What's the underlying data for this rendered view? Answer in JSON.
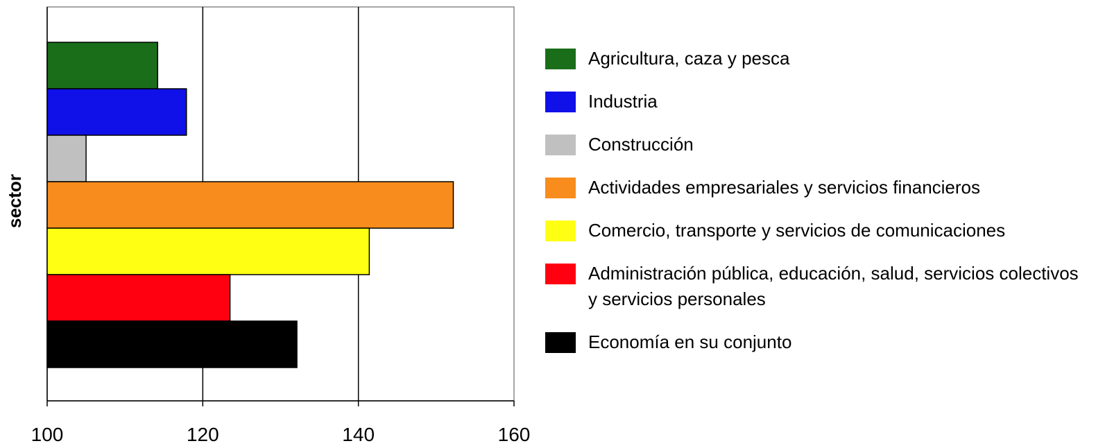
{
  "chart_data": {
    "type": "bar",
    "orientation": "horizontal",
    "ylabel": "sector",
    "xlim": [
      100,
      160
    ],
    "xticks": [
      100,
      120,
      140,
      160
    ],
    "grid": true,
    "series": [
      {
        "name": "Agricultura, caza y pesca",
        "color": "#1a6e1a",
        "values": [
          114.2
        ]
      },
      {
        "name": "Industria",
        "color": "#1010e8",
        "values": [
          117.9
        ]
      },
      {
        "name": "Construcción",
        "color": "#c0c0c0",
        "values": [
          105
        ]
      },
      {
        "name": "Actividades empresariales y servicios financieros",
        "color": "#f88c1c",
        "values": [
          152.2
        ]
      },
      {
        "name": "Comercio, transporte y servicios de comunicaciones",
        "color": "#ffff14",
        "values": [
          141.4
        ]
      },
      {
        "name": "Administración pública, educación, salud, servicios colectivos y servicios personales",
        "color": "#ff0010",
        "values": [
          123.5
        ]
      },
      {
        "name": "Economía en su conjunto",
        "color": "#000000",
        "values": [
          132.1
        ]
      }
    ]
  }
}
